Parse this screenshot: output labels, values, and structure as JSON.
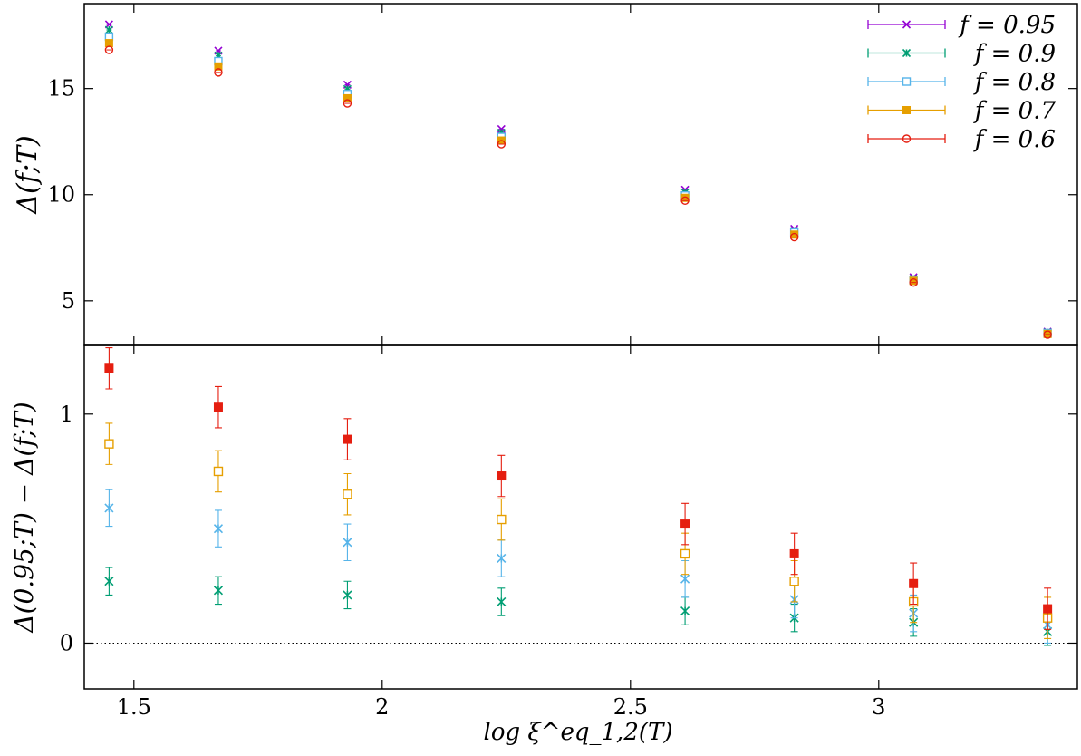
{
  "chart_data": [
    {
      "type": "scatter",
      "panel": "top",
      "xlabel": "log ξ^eq_1,2(T)",
      "ylabel": "Δ(f;T)",
      "xlim": [
        1.4,
        3.4
      ],
      "ylim": [
        2.9,
        19.0
      ],
      "yticks": [
        5,
        10,
        15
      ],
      "ytick_labels": [
        "5",
        "10",
        "15"
      ],
      "legend_position": "top-right",
      "x": [
        1.45,
        1.67,
        1.93,
        2.24,
        2.61,
        2.83,
        3.07,
        3.34
      ],
      "series": [
        {
          "name": "f = 0.95",
          "color": "#9400d3",
          "marker": "x",
          "values": [
            18.02,
            16.78,
            15.18,
            13.09,
            10.23,
            8.39,
            6.11,
            3.55
          ]
        },
        {
          "name": "f = 0.9",
          "color": "#009e73",
          "marker": "star",
          "values": [
            17.76,
            16.55,
            14.97,
            12.91,
            10.1,
            8.29,
            6.03,
            3.51
          ]
        },
        {
          "name": "f = 0.8",
          "color": "#56b4e9",
          "marker": "square-open",
          "values": [
            17.44,
            16.29,
            14.74,
            12.72,
            9.96,
            8.22,
            5.98,
            3.48
          ]
        },
        {
          "name": "f = 0.7",
          "color": "#e69f00",
          "marker": "square-filled",
          "values": [
            17.14,
            16.04,
            14.54,
            12.55,
            9.85,
            8.12,
            5.94,
            3.44
          ]
        },
        {
          "name": "f = 0.6",
          "color": "#e51e10",
          "marker": "circle-open",
          "values": [
            16.82,
            15.76,
            14.3,
            12.38,
            9.72,
            8.0,
            5.86,
            3.41
          ]
        }
      ]
    },
    {
      "type": "scatter",
      "panel": "bottom",
      "xlabel": "log ξ^eq_1,2(T)",
      "ylabel": "Δ(0.95;T) − Δ(f;T)",
      "xlim": [
        1.4,
        3.4
      ],
      "ylim": [
        -0.2,
        1.3
      ],
      "xticks": [
        1.5,
        2,
        2.5,
        3
      ],
      "xtick_labels": [
        "1.5",
        "2",
        "2.5",
        "3"
      ],
      "yticks": [
        0,
        1
      ],
      "ytick_labels": [
        "0",
        "1"
      ],
      "reference_line": 0,
      "x": [
        1.45,
        1.67,
        1.93,
        2.24,
        2.61,
        2.83,
        3.07,
        3.34
      ],
      "series": [
        {
          "name": "f = 0.9",
          "color": "#009e73",
          "marker": "star",
          "values": [
            0.27,
            0.23,
            0.21,
            0.18,
            0.14,
            0.11,
            0.09,
            0.05
          ],
          "errors": [
            0.06,
            0.06,
            0.06,
            0.06,
            0.06,
            0.06,
            0.06,
            0.06
          ]
        },
        {
          "name": "f = 0.8",
          "color": "#56b4e9",
          "marker": "star",
          "values": [
            0.59,
            0.5,
            0.44,
            0.37,
            0.28,
            0.19,
            0.13,
            0.08
          ],
          "errors": [
            0.08,
            0.08,
            0.08,
            0.08,
            0.08,
            0.08,
            0.08,
            0.08
          ]
        },
        {
          "name": "f = 0.7",
          "color": "#e69f00",
          "marker": "square-open",
          "values": [
            0.87,
            0.75,
            0.65,
            0.54,
            0.39,
            0.27,
            0.18,
            0.11
          ],
          "errors": [
            0.09,
            0.09,
            0.09,
            0.09,
            0.09,
            0.09,
            0.09,
            0.09
          ]
        },
        {
          "name": "f = 0.6",
          "color": "#e51e10",
          "marker": "square-filled",
          "values": [
            1.2,
            1.03,
            0.89,
            0.73,
            0.52,
            0.39,
            0.26,
            0.15
          ],
          "errors": [
            0.09,
            0.09,
            0.09,
            0.09,
            0.09,
            0.09,
            0.09,
            0.09
          ]
        }
      ]
    }
  ]
}
